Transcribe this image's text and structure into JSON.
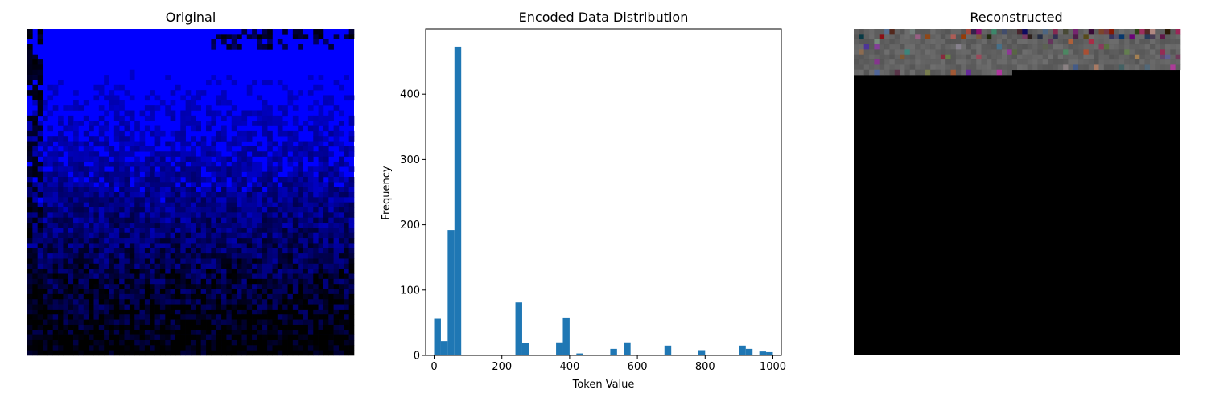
{
  "panels": {
    "original": {
      "title": "Original",
      "base_color": "#0000ff",
      "dark_color": "#000000",
      "grid_cells": 64
    },
    "histogram": {
      "title": "Encoded Data Distribution"
    },
    "reconstructed": {
      "title": "Reconstructed",
      "background_color": "#000000",
      "band_color": "#555555"
    }
  },
  "chart_data": {
    "type": "bar",
    "title": "Encoded Data Distribution",
    "xlabel": "Token Value",
    "ylabel": "Frequency",
    "xlim": [
      -25,
      1025
    ],
    "ylim": [
      0,
      500
    ],
    "bar_width": 20,
    "xticks": [
      0,
      200,
      400,
      600,
      800,
      1000
    ],
    "yticks": [
      0,
      100,
      200,
      300,
      400
    ],
    "color": "#1f77b4",
    "bins": [
      {
        "x": 0,
        "count": 56
      },
      {
        "x": 20,
        "count": 22
      },
      {
        "x": 40,
        "count": 192
      },
      {
        "x": 60,
        "count": 473
      },
      {
        "x": 240,
        "count": 81
      },
      {
        "x": 260,
        "count": 19
      },
      {
        "x": 360,
        "count": 20
      },
      {
        "x": 380,
        "count": 58
      },
      {
        "x": 420,
        "count": 3
      },
      {
        "x": 520,
        "count": 10
      },
      {
        "x": 560,
        "count": 20
      },
      {
        "x": 680,
        "count": 15
      },
      {
        "x": 780,
        "count": 8
      },
      {
        "x": 900,
        "count": 15
      },
      {
        "x": 920,
        "count": 10
      },
      {
        "x": 960,
        "count": 6
      },
      {
        "x": 980,
        "count": 5
      }
    ]
  }
}
